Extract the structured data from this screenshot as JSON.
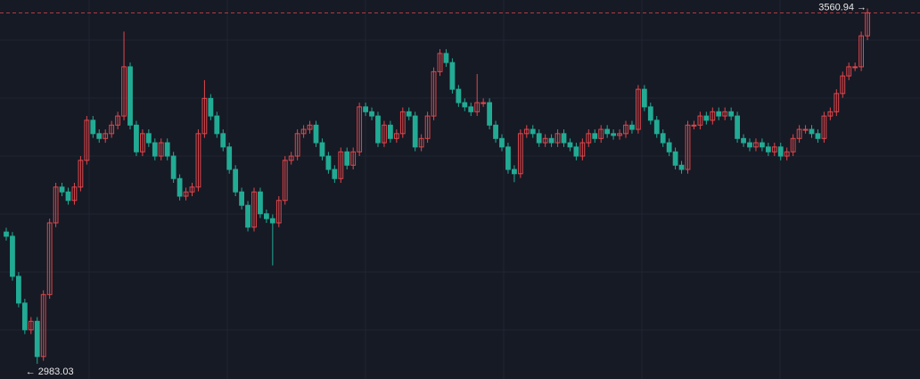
{
  "chart_data": {
    "type": "candlestick",
    "up_color": "#e0474c",
    "down_color": "#22ab94",
    "ylim": [
      2958,
      3582
    ],
    "last_price_label": "3560.94 →",
    "low_label": "← 2983.03",
    "open": [
      3200,
      3193,
      3127,
      3083,
      3039,
      3053,
      2995,
      3097,
      3215,
      3274,
      3266,
      3252,
      3274,
      3318,
      3384,
      3362,
      3354,
      3362,
      3376,
      3391,
      3472,
      3376,
      3332,
      3362,
      3347,
      3325,
      3347,
      3325,
      3288,
      3259,
      3266,
      3274,
      3362,
      3420,
      3391,
      3362,
      3340,
      3303,
      3266,
      3244,
      3208,
      3266,
      3230,
      3222,
      3215,
      3252,
      3318,
      3325,
      3362,
      3369,
      3376,
      3347,
      3325,
      3303,
      3288,
      3332,
      3310,
      3332,
      3406,
      3398,
      3391,
      3347,
      3376,
      3354,
      3362,
      3398,
      3391,
      3340,
      3354,
      3391,
      3464,
      3494,
      3479,
      3435,
      3413,
      3406,
      3398,
      3413,
      3413,
      3376,
      3354,
      3340,
      3303,
      3296,
      3362,
      3369,
      3362,
      3347,
      3354,
      3347,
      3362,
      3347,
      3340,
      3325,
      3347,
      3362,
      3354,
      3369,
      3362,
      3359,
      3362,
      3376,
      3369,
      3435,
      3406,
      3384,
      3362,
      3347,
      3332,
      3310,
      3303,
      3376,
      3376,
      3391,
      3384,
      3398,
      3391,
      3398,
      3391,
      3354,
      3347,
      3340,
      3347,
      3340,
      3332,
      3340,
      3325,
      3332,
      3354,
      3369,
      3369,
      3362,
      3354,
      3391,
      3398,
      3428,
      3457,
      3472,
      3472,
      3523
    ],
    "high": [
      3207,
      3200,
      3134,
      3090,
      3060,
      3060,
      3104,
      3222,
      3281,
      3281,
      3273,
      3281,
      3325,
      3391,
      3391,
      3369,
      3369,
      3383,
      3398,
      3530,
      3479,
      3383,
      3369,
      3369,
      3354,
      3354,
      3354,
      3332,
      3295,
      3273,
      3281,
      3369,
      3450,
      3427,
      3398,
      3369,
      3347,
      3310,
      3273,
      3251,
      3273,
      3273,
      3237,
      3229,
      3259,
      3325,
      3332,
      3369,
      3376,
      3383,
      3383,
      3354,
      3332,
      3310,
      3339,
      3339,
      3339,
      3413,
      3413,
      3405,
      3398,
      3383,
      3383,
      3369,
      3405,
      3405,
      3398,
      3361,
      3398,
      3471,
      3501,
      3501,
      3486,
      3442,
      3420,
      3413,
      3460,
      3420,
      3420,
      3383,
      3361,
      3347,
      3310,
      3369,
      3376,
      3376,
      3369,
      3361,
      3361,
      3369,
      3369,
      3354,
      3347,
      3354,
      3369,
      3369,
      3376,
      3376,
      3369,
      3369,
      3383,
      3383,
      3442,
      3442,
      3413,
      3391,
      3369,
      3354,
      3339,
      3317,
      3383,
      3383,
      3398,
      3398,
      3405,
      3405,
      3405,
      3405,
      3398,
      3361,
      3354,
      3354,
      3354,
      3347,
      3347,
      3347,
      3339,
      3361,
      3376,
      3376,
      3376,
      3369,
      3398,
      3405,
      3435,
      3464,
      3479,
      3479,
      3530,
      3568
    ],
    "low": [
      3186,
      3120,
      3076,
      3032,
      3032,
      2983.03,
      2988,
      3090,
      3208,
      3259,
      3245,
      3245,
      3267,
      3311,
      3355,
      3347,
      3347,
      3355,
      3369,
      3384,
      3369,
      3325,
      3325,
      3340,
      3318,
      3318,
      3318,
      3281,
      3252,
      3252,
      3259,
      3267,
      3355,
      3384,
      3355,
      3333,
      3296,
      3259,
      3237,
      3201,
      3201,
      3223,
      3215,
      3145,
      3208,
      3245,
      3311,
      3318,
      3355,
      3362,
      3340,
      3318,
      3296,
      3281,
      3281,
      3303,
      3303,
      3325,
      3391,
      3384,
      3340,
      3340,
      3347,
      3347,
      3355,
      3384,
      3333,
      3333,
      3347,
      3384,
      3457,
      3472,
      3428,
      3406,
      3399,
      3391,
      3391,
      3406,
      3369,
      3347,
      3333,
      3296,
      3282,
      3289,
      3355,
      3355,
      3340,
      3340,
      3340,
      3340,
      3340,
      3333,
      3318,
      3318,
      3340,
      3347,
      3347,
      3355,
      3352,
      3352,
      3355,
      3362,
      3362,
      3399,
      3377,
      3355,
      3340,
      3325,
      3303,
      3296,
      3296,
      3369,
      3369,
      3377,
      3377,
      3384,
      3384,
      3384,
      3347,
      3340,
      3333,
      3333,
      3333,
      3325,
      3325,
      3318,
      3318,
      3325,
      3347,
      3362,
      3355,
      3347,
      3347,
      3384,
      3391,
      3421,
      3450,
      3465,
      3465,
      3516
    ],
    "close": [
      3193,
      3127,
      3083,
      3039,
      3053,
      2995,
      3097,
      3215,
      3274,
      3266,
      3252,
      3274,
      3318,
      3384,
      3362,
      3354,
      3362,
      3376,
      3391,
      3472,
      3376,
      3332,
      3362,
      3347,
      3325,
      3347,
      3325,
      3288,
      3259,
      3266,
      3274,
      3362,
      3420,
      3391,
      3362,
      3340,
      3303,
      3266,
      3244,
      3208,
      3266,
      3230,
      3222,
      3215,
      3252,
      3318,
      3325,
      3362,
      3369,
      3376,
      3347,
      3325,
      3303,
      3288,
      3332,
      3310,
      3332,
      3406,
      3398,
      3391,
      3347,
      3376,
      3354,
      3362,
      3398,
      3391,
      3340,
      3354,
      3391,
      3464,
      3494,
      3479,
      3435,
      3413,
      3406,
      3398,
      3413,
      3413,
      3376,
      3354,
      3340,
      3303,
      3296,
      3362,
      3369,
      3362,
      3347,
      3354,
      3347,
      3362,
      3347,
      3340,
      3325,
      3347,
      3362,
      3354,
      3369,
      3362,
      3359,
      3362,
      3376,
      3369,
      3435,
      3406,
      3384,
      3362,
      3347,
      3332,
      3310,
      3303,
      3376,
      3376,
      3391,
      3384,
      3398,
      3391,
      3398,
      3391,
      3354,
      3347,
      3340,
      3347,
      3340,
      3332,
      3340,
      3325,
      3332,
      3354,
      3369,
      3369,
      3362,
      3354,
      3391,
      3398,
      3428,
      3457,
      3472,
      3472,
      3523,
      3560.94
    ]
  }
}
